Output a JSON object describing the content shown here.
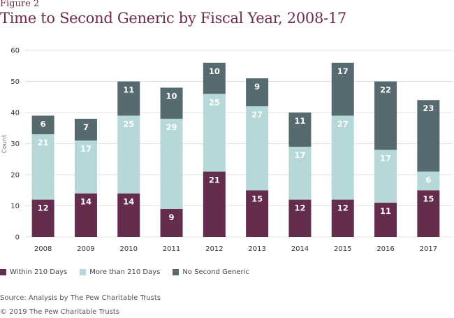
{
  "figure_label": "Figure 2",
  "chart_data": {
    "type": "bar",
    "stacked": true,
    "title": "Time to Second Generic by Fiscal Year, 2008-17",
    "xlabel": "",
    "ylabel": "Count",
    "ylim": [
      0,
      60
    ],
    "yticks": [
      0,
      10,
      20,
      30,
      40,
      50,
      60
    ],
    "grid": true,
    "legend_position": "bottom-left",
    "categories": [
      "2008",
      "2009",
      "2010",
      "2011",
      "2012",
      "2013",
      "2014",
      "2015",
      "2016",
      "2017"
    ],
    "series": [
      {
        "name": "Within 210 Days",
        "color": "#642d4d",
        "label_color": "#ffffff",
        "values": [
          12,
          14,
          14,
          9,
          21,
          15,
          12,
          12,
          11,
          15
        ]
      },
      {
        "name": "More than 210 Days",
        "color": "#b6d8d9",
        "label_color": "#ffffff",
        "values": [
          21,
          17,
          25,
          29,
          25,
          27,
          17,
          27,
          17,
          6
        ]
      },
      {
        "name": "No Second Generic",
        "color": "#566a70",
        "label_color": "#ffffff",
        "values": [
          6,
          7,
          11,
          10,
          10,
          9,
          11,
          17,
          22,
          23
        ]
      }
    ]
  },
  "source": "Source: Analysis by The Pew Charitable Trusts",
  "copyright": "© 2019 The Pew Charitable Trusts"
}
